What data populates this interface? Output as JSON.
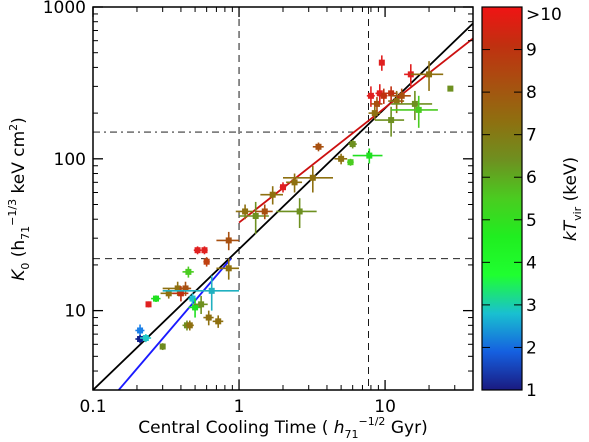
{
  "chart_data": {
    "type": "scatter",
    "xlabel": "Central Cooling Time ( h71−1/2 Gyr)",
    "ylabel": "K0 (h71−1/3 keV cm2)",
    "x_scale": "log",
    "y_scale": "log",
    "xlim": [
      0.1,
      40
    ],
    "ylim": [
      3,
      1000
    ],
    "x_ticks": [
      {
        "value": 0.1,
        "label": "0.1"
      },
      {
        "value": 1,
        "label": "1"
      },
      {
        "value": 10,
        "label": "10"
      }
    ],
    "y_ticks": [
      {
        "value": 10,
        "label": "10"
      },
      {
        "value": 100,
        "label": "100"
      },
      {
        "value": 1000,
        "label": "1000"
      }
    ],
    "reference_lines": {
      "vertical_dashed_x": [
        1,
        7.7
      ],
      "horizontal_dashed_y": 22,
      "horizontal_dashdot_y": 150
    },
    "fit_lines": [
      {
        "color": "#000000",
        "points": [
          [
            0.1,
            3
          ],
          [
            40,
            780
          ]
        ]
      },
      {
        "color": "#1a1aff",
        "points": [
          [
            0.15,
            3
          ],
          [
            0.88,
            22
          ]
        ]
      },
      {
        "color": "#cc1010",
        "points": [
          [
            1,
            38
          ],
          [
            40,
            620
          ]
        ]
      }
    ],
    "colorbar": {
      "label": "kTvir (keV)",
      "range": [
        1,
        10
      ],
      "ticks": [
        {
          "value": 1,
          "label": "1"
        },
        {
          "value": 2,
          "label": "2"
        },
        {
          "value": 3,
          "label": "3"
        },
        {
          "value": 4,
          "label": "4"
        },
        {
          "value": 5,
          "label": "5"
        },
        {
          "value": 6,
          "label": "6"
        },
        {
          "value": 7,
          "label": "7"
        },
        {
          "value": 8,
          "label": "8"
        },
        {
          "value": 9,
          "label": "9"
        },
        {
          "value": 10,
          "label": ">10"
        }
      ],
      "stops": [
        "#1a1a80",
        "#1560e0",
        "#19c0d0",
        "#1fff30",
        "#20ee20",
        "#4acc20",
        "#6e9020",
        "#8e7010",
        "#a85010",
        "#c03010",
        "#f01414"
      ]
    },
    "points": [
      {
        "x": 0.21,
        "y": 7.4,
        "xerr": 0.015,
        "yerr": 0.7,
        "color": "#1a7fe8"
      },
      {
        "x": 0.21,
        "y": 6.5,
        "xerr": 0.015,
        "yerr": 0.4,
        "color": "#0e1e8a"
      },
      {
        "x": 0.23,
        "y": 6.6,
        "xerr": 0.02,
        "yerr": 0.4,
        "color": "#20c8c8"
      },
      {
        "x": 0.24,
        "y": 11,
        "xerr": 0.01,
        "yerr": 0.5,
        "color": "#e02020"
      },
      {
        "x": 0.27,
        "y": 12,
        "xerr": 0.02,
        "yerr": 0.6,
        "color": "#20e020"
      },
      {
        "x": 0.3,
        "y": 5.8,
        "xerr": 0.01,
        "yerr": 0.3,
        "color": "#6e8a20"
      },
      {
        "x": 0.33,
        "y": 13,
        "xerr": 0.04,
        "yerr": 1.0,
        "color": "#8e7010"
      },
      {
        "x": 0.38,
        "y": 14,
        "xerr": 0.08,
        "yerr": 1.5,
        "color": "#8e7010"
      },
      {
        "x": 0.4,
        "y": 13,
        "xerr": 0.05,
        "yerr": 1.5,
        "color": "#c03010"
      },
      {
        "x": 0.43,
        "y": 14,
        "xerr": 0.04,
        "yerr": 1.5,
        "color": "#a85010"
      },
      {
        "x": 0.45,
        "y": 18,
        "xerr": 0.04,
        "yerr": 1.5,
        "color": "#4acc20"
      },
      {
        "x": 0.44,
        "y": 8,
        "xerr": 0.03,
        "yerr": 0.6,
        "color": "#6e9020"
      },
      {
        "x": 0.46,
        "y": 8,
        "xerr": 0.03,
        "yerr": 0.6,
        "color": "#8e7010"
      },
      {
        "x": 0.48,
        "y": 12,
        "xerr": 0.03,
        "yerr": 1.0,
        "color": "#20c0d0"
      },
      {
        "x": 0.5,
        "y": 10.5,
        "xerr": 0.05,
        "yerr": 1.5,
        "color": "#20e020"
      },
      {
        "x": 0.52,
        "y": 25,
        "xerr": 0.03,
        "yerr": 1.5,
        "color": "#e02020"
      },
      {
        "x": 0.55,
        "y": 11,
        "xerr": 0.06,
        "yerr": 1.5,
        "color": "#6e9020"
      },
      {
        "x": 0.58,
        "y": 25,
        "xerr": 0.03,
        "yerr": 1.5,
        "color": "#e02020"
      },
      {
        "x": 0.6,
        "y": 21,
        "xerr": 0.03,
        "yerr": 1.5,
        "color": "#c04010"
      },
      {
        "x": 0.62,
        "y": 9,
        "xerr": 0.05,
        "yerr": 1.0,
        "color": "#8e7010"
      },
      {
        "x": 0.65,
        "y": 13.5,
        "xerr": 0.35,
        "yerr": 3.5,
        "color": "#20b0c0"
      },
      {
        "x": 0.72,
        "y": 8.5,
        "xerr": 0.06,
        "yerr": 0.8,
        "color": "#8e7010"
      },
      {
        "x": 0.85,
        "y": 29,
        "xerr": 0.15,
        "yerr": 4,
        "color": "#a85010"
      },
      {
        "x": 0.85,
        "y": 19,
        "xerr": 0.15,
        "yerr": 3,
        "color": "#8e7010"
      },
      {
        "x": 1.1,
        "y": 45,
        "xerr": 0.15,
        "yerr": 5,
        "color": "#8e7010"
      },
      {
        "x": 1.3,
        "y": 42,
        "xerr": 0.3,
        "yerr": 10,
        "color": "#6e9020"
      },
      {
        "x": 1.5,
        "y": 45,
        "xerr": 0.2,
        "yerr": 5,
        "color": "#a85010"
      },
      {
        "x": 1.7,
        "y": 58,
        "xerr": 0.3,
        "yerr": 8,
        "color": "#8e7010"
      },
      {
        "x": 2.0,
        "y": 65,
        "xerr": 0.1,
        "yerr": 5,
        "color": "#e02020"
      },
      {
        "x": 2.4,
        "y": 70,
        "xerr": 0.3,
        "yerr": 10,
        "color": "#8e7010"
      },
      {
        "x": 3.2,
        "y": 75,
        "xerr": 1.2,
        "yerr": 15,
        "color": "#8e7010"
      },
      {
        "x": 3.5,
        "y": 120,
        "xerr": 0.3,
        "yerr": 8,
        "color": "#a85010"
      },
      {
        "x": 2.6,
        "y": 45,
        "xerr": 0.8,
        "yerr": 10,
        "color": "#6e9020"
      },
      {
        "x": 5.0,
        "y": 100,
        "xerr": 0.5,
        "yerr": 8,
        "color": "#8e7010"
      },
      {
        "x": 5.8,
        "y": 95,
        "xerr": 0.3,
        "yerr": 5,
        "color": "#4acc20"
      },
      {
        "x": 6.0,
        "y": 125,
        "xerr": 0.4,
        "yerr": 8,
        "color": "#6e9020"
      },
      {
        "x": 7.8,
        "y": 105,
        "xerr": 1.8,
        "yerr": 12,
        "color": "#20e020"
      },
      {
        "x": 8.0,
        "y": 260,
        "xerr": 0.5,
        "yerr": 40,
        "color": "#e02020"
      },
      {
        "x": 8.5,
        "y": 200,
        "xerr": 0.8,
        "yerr": 20,
        "color": "#8e7010"
      },
      {
        "x": 8.8,
        "y": 230,
        "xerr": 0.8,
        "yerr": 25,
        "color": "#a85010"
      },
      {
        "x": 9.2,
        "y": 270,
        "xerr": 0.6,
        "yerr": 40,
        "color": "#e02020"
      },
      {
        "x": 9.5,
        "y": 430,
        "xerr": 0.4,
        "yerr": 50,
        "color": "#e02020"
      },
      {
        "x": 9.8,
        "y": 260,
        "xerr": 0.6,
        "yerr": 30,
        "color": "#c03010"
      },
      {
        "x": 11,
        "y": 180,
        "xerr": 2.5,
        "yerr": 40,
        "color": "#6e9020"
      },
      {
        "x": 11,
        "y": 270,
        "xerr": 1.2,
        "yerr": 30,
        "color": "#c03010"
      },
      {
        "x": 12,
        "y": 240,
        "xerr": 1.5,
        "yerr": 40,
        "color": "#8e7010"
      },
      {
        "x": 13,
        "y": 260,
        "xerr": 2.0,
        "yerr": 30,
        "color": "#a85010"
      },
      {
        "x": 15,
        "y": 360,
        "xerr": 1.5,
        "yerr": 60,
        "color": "#e02020"
      },
      {
        "x": 16,
        "y": 230,
        "xerr": 5,
        "yerr": 50,
        "color": "#6e9020"
      },
      {
        "x": 17,
        "y": 210,
        "xerr": 6,
        "yerr": 50,
        "color": "#4acc20"
      },
      {
        "x": 20,
        "y": 360,
        "xerr": 5,
        "yerr": 80,
        "color": "#8e7010"
      },
      {
        "x": 28,
        "y": 290,
        "xerr": 1,
        "yerr": 10,
        "color": "#6e9020"
      }
    ]
  }
}
